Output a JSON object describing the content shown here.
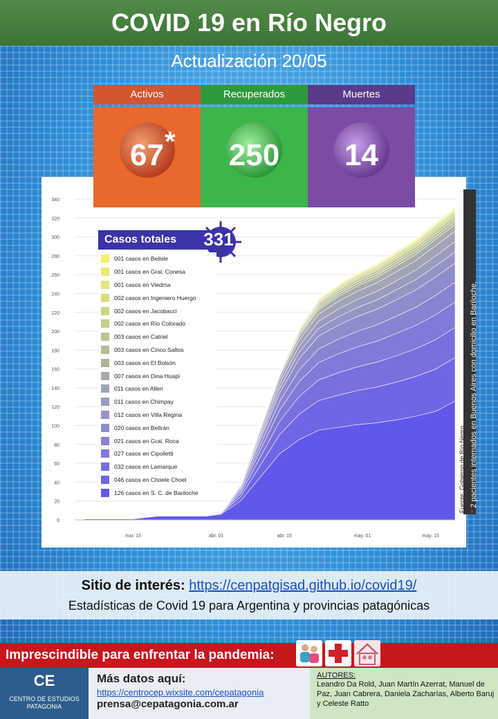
{
  "header": {
    "title": "COVID 19 en Río Negro",
    "subtitle": "Actualización  20/05"
  },
  "stats": [
    {
      "label": "Activos",
      "value": "67",
      "note": "*",
      "color": "#d2562e",
      "box_color": "#e9682c"
    },
    {
      "label": "Recuperados",
      "value": "250",
      "color": "#2e9a3e",
      "box_color": "#3cb54a"
    },
    {
      "label": "Muertes",
      "value": "14",
      "color": "#5a3a8a",
      "box_color": "#7c4ba6"
    }
  ],
  "totals": {
    "label": "Casos totales",
    "value": "331"
  },
  "chart_data": {
    "type": "area",
    "stacked": true,
    "x_ticks": [
      "mar. 15",
      "abr. 01",
      "abr. 15",
      "may. 01",
      "may. 15"
    ],
    "y_ticks": [
      0,
      20,
      40,
      60,
      80,
      100,
      120,
      140,
      160,
      180,
      200,
      220,
      240,
      260,
      280,
      300,
      320,
      340
    ],
    "ylim": [
      0,
      340
    ],
    "x_range": [
      "2020-03-03",
      "2020-05-20"
    ],
    "dates": [
      "2020-03-05",
      "2020-03-10",
      "2020-03-15",
      "2020-03-20",
      "2020-03-25",
      "2020-03-30",
      "2020-04-02",
      "2020-04-06",
      "2020-04-10",
      "2020-04-14",
      "2020-04-18",
      "2020-04-22",
      "2020-04-26",
      "2020-04-30",
      "2020-05-04",
      "2020-05-08",
      "2020-05-12",
      "2020-05-16",
      "2020-05-20"
    ],
    "totals": [
      1,
      1,
      2,
      5,
      5,
      6,
      9,
      40,
      100,
      160,
      205,
      235,
      250,
      262,
      272,
      285,
      298,
      315,
      331
    ],
    "bariloche": [
      1,
      1,
      1,
      4,
      4,
      4,
      6,
      20,
      45,
      70,
      85,
      95,
      98,
      101,
      103,
      106,
      110,
      115,
      126
    ],
    "series": [
      {
        "name": "001 casos en Belisle",
        "value": 1,
        "color": "#f7f06a"
      },
      {
        "name": "001 casos en Gral. Conesa",
        "value": 1,
        "color": "#eeec72"
      },
      {
        "name": "001 casos en Viedma",
        "value": 1,
        "color": "#e4e47a"
      },
      {
        "name": "002 casos en Ingeniero Huergo",
        "value": 2,
        "color": "#dadc80"
      },
      {
        "name": "002 casos en Jacobacci",
        "value": 2,
        "color": "#d0d486"
      },
      {
        "name": "002 casos en Río Colorado",
        "value": 2,
        "color": "#c7cc8c"
      },
      {
        "name": "003 casos en Catriel",
        "value": 3,
        "color": "#bec492"
      },
      {
        "name": "003 casos en Cinco Saltos",
        "value": 3,
        "color": "#b6bc98"
      },
      {
        "name": "003 casos en El Bolsón",
        "value": 3,
        "color": "#aeb49e"
      },
      {
        "name": "007 casos en Dina Huapi",
        "value": 7,
        "color": "#a6acaa"
      },
      {
        "name": "011 casos en Allen",
        "value": 11,
        "color": "#a0a4b4"
      },
      {
        "name": "011 casos en Chimpay",
        "value": 11,
        "color": "#9a9cbe"
      },
      {
        "name": "012 casos en Villa Regina",
        "value": 12,
        "color": "#9594c6"
      },
      {
        "name": "020 casos en Beltrán",
        "value": 20,
        "color": "#8f8ccc"
      },
      {
        "name": "021 casos en Gral. Roca",
        "value": 21,
        "color": "#8883d2"
      },
      {
        "name": "027 casos en Cipolletti",
        "value": 27,
        "color": "#807ad8"
      },
      {
        "name": "032 casos en Lamarque",
        "value": 32,
        "color": "#7870de"
      },
      {
        "name": "046 casos en Choele Choel",
        "value": 46,
        "color": "#6e66e4"
      },
      {
        "name": "126 casos en S. C. de Bariloche",
        "value": 126,
        "color": "#5f58ea"
      }
    ]
  },
  "side_note": {
    "star": "*",
    "text": "2 pacientes internados en Buenos Aires con domicilio en Bariloche."
  },
  "source": "Fuente: Gobierno de Río Negro",
  "interest": {
    "label": "Sitio de interés:",
    "url": "https://cenpatgisad.github.io/covid19/",
    "description": "Estadísticas de Covid 19 para Argentina y provincias patagónicas"
  },
  "banner": {
    "text": "Imprescindible para enfrentar la pandemia:",
    "icons": [
      "family-icon",
      "red-cross-icon",
      "stay-home-icon"
    ]
  },
  "footer": {
    "logo": "CE",
    "org_name": "CENTRO DE ESTUDIOS PATAGONIA",
    "more_title": "Más datos aquí:",
    "more_link": "https://centrocep.wixsite.com/cepatagonia",
    "email": "prensa@cepatagonia.com.ar",
    "authors_title": "AUTORES:",
    "authors": "Leandro Da Rold, Juan Martín Azerrat, Manuel de Paz, Juan Cabrera, Daniela Zacharías, Alberto Baruj y Celeste Ratto"
  }
}
